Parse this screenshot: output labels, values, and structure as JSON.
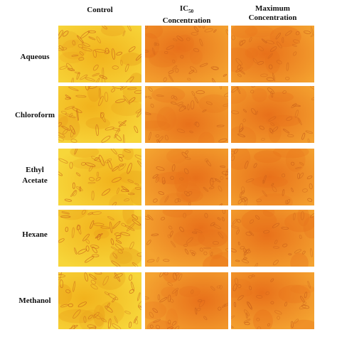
{
  "figure": {
    "columns": [
      {
        "id": "control",
        "lines": [
          "Control"
        ]
      },
      {
        "id": "ic50",
        "lines": [
          "IC",
          "Concentration"
        ],
        "subscript": "50"
      },
      {
        "id": "maximum",
        "lines": [
          "Maximum",
          "Concentration"
        ]
      }
    ],
    "rows": [
      {
        "id": "aqueous",
        "lines": [
          "Aqueous"
        ]
      },
      {
        "id": "chloroform",
        "lines": [
          "Chloroform"
        ]
      },
      {
        "id": "ethyl-acetate",
        "lines": [
          "Ethyl",
          "Acetate"
        ]
      },
      {
        "id": "hexane",
        "lines": [
          "Hexane"
        ]
      },
      {
        "id": "methanol",
        "lines": [
          "Methanol"
        ]
      }
    ],
    "colors": {
      "control_base": "#f2b21c",
      "control_light": "#f7d63a",
      "treated_base": "#f4a330",
      "treated_dark": "#e8701a",
      "cell_stroke": "#c9601a"
    }
  }
}
